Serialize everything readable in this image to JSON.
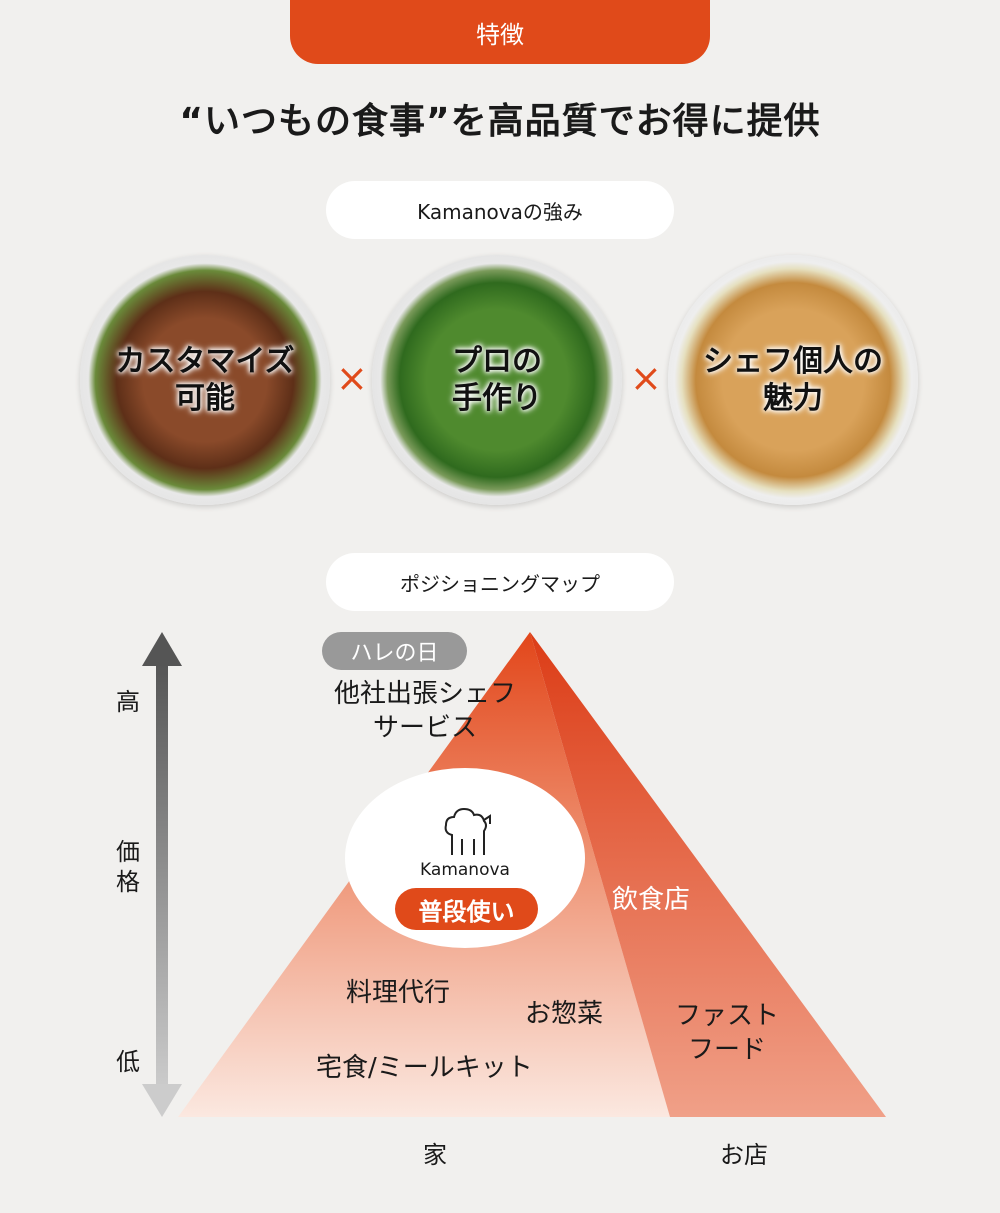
{
  "header": {
    "tag": "特徴",
    "title": "“いつもの食事”を高品質でお得に提供"
  },
  "strengths": {
    "heading": "Kamanovaの強み",
    "items": [
      {
        "line1": "カスタマイズ",
        "line2": "可能"
      },
      {
        "line1": "プロの",
        "line2": "手作り"
      },
      {
        "line1": "シェフ個人の",
        "line2": "魅力"
      }
    ],
    "separator": "×"
  },
  "positioning": {
    "heading": "ポジショニングマップ",
    "y_axis": {
      "high": "高",
      "mid1": "価",
      "mid2": "格",
      "low": "低"
    },
    "x_axis": {
      "home": "家",
      "store": "お店"
    },
    "hare_badge": "ハレの日",
    "competitor_line1": "他社出張シェフ",
    "competitor_line2": "サービス",
    "brand": {
      "name": "Kamanova",
      "badge": "普段使い"
    },
    "restaurant": "飲食店",
    "cooking_agency": "料理代行",
    "deli": "お惣菜",
    "fastfood_line1": "ファスト",
    "fastfood_line2": "フード",
    "meal_kit": "宅食/ミールキット"
  },
  "colors": {
    "accent": "#e04a1a",
    "background": "#f1f0ee"
  }
}
